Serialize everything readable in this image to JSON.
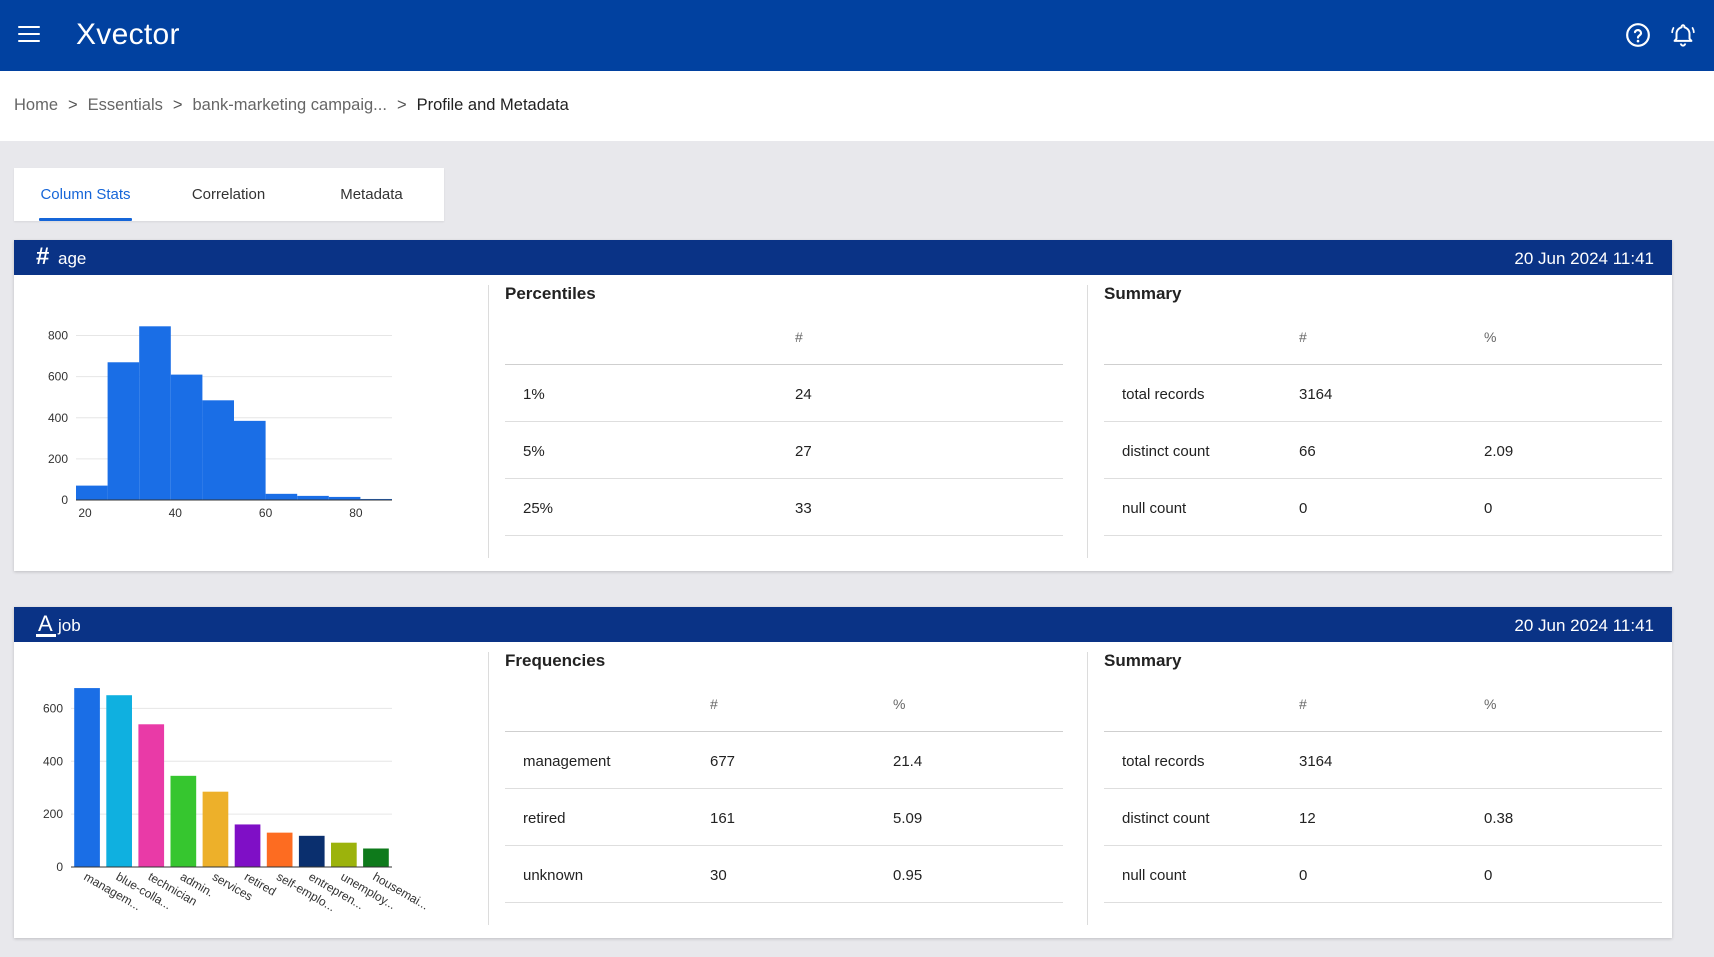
{
  "app": {
    "title": "Xvector"
  },
  "header": {
    "help_icon": "help-circle-icon",
    "bell_icon": "bell-icon"
  },
  "breadcrumb": {
    "items": [
      "Home",
      "Essentials",
      "bank-marketing campaig...",
      "Profile and Metadata"
    ],
    "separator": ">"
  },
  "tabs": [
    {
      "label": "Column Stats",
      "active": true
    },
    {
      "label": "Correlation",
      "active": false
    },
    {
      "label": "Metadata",
      "active": false
    }
  ],
  "colors": {
    "header": "#0141a0",
    "card_header": "#0a3386",
    "accent": "#1565d8",
    "bar": "#1a6ee6"
  },
  "cards": [
    {
      "type_icon": "#",
      "name": "age",
      "date": "20 Jun 2024 11:41",
      "left_panel": {
        "title": "Percentiles",
        "columns": [
          "",
          "#"
        ],
        "rows": [
          [
            "1%",
            "24"
          ],
          [
            "5%",
            "27"
          ],
          [
            "25%",
            "33"
          ]
        ]
      },
      "summary": {
        "title": "Summary",
        "columns": [
          "",
          "#",
          "%"
        ],
        "rows": [
          [
            "total records",
            "3164",
            ""
          ],
          [
            "distinct count",
            "66",
            "2.09"
          ],
          [
            "null count",
            "0",
            "0"
          ]
        ]
      }
    },
    {
      "type_icon": "A",
      "name": "job",
      "date": "20 Jun 2024 11:41",
      "left_panel": {
        "title": "Frequencies",
        "columns": [
          "",
          "#",
          "%"
        ],
        "rows": [
          [
            "management",
            "677",
            "21.4"
          ],
          [
            "retired",
            "161",
            "5.09"
          ],
          [
            "unknown",
            "30",
            "0.95"
          ]
        ]
      },
      "summary": {
        "title": "Summary",
        "columns": [
          "",
          "#",
          "%"
        ],
        "rows": [
          [
            "total records",
            "3164",
            ""
          ],
          [
            "distinct count",
            "12",
            "0.38"
          ],
          [
            "null count",
            "0",
            "0"
          ]
        ]
      }
    }
  ],
  "chart_data": [
    {
      "type": "bar",
      "subtype": "histogram",
      "bins": [
        [
          18,
          25
        ],
        [
          25,
          32
        ],
        [
          32,
          39
        ],
        [
          39,
          46
        ],
        [
          46,
          53
        ],
        [
          53,
          60
        ],
        [
          60,
          67
        ],
        [
          67,
          74
        ],
        [
          74,
          81
        ],
        [
          81,
          88
        ]
      ],
      "values": [
        70,
        670,
        845,
        610,
        485,
        385,
        30,
        20,
        15,
        5
      ],
      "xticks": [
        20,
        40,
        60,
        80
      ],
      "yticks": [
        0,
        200,
        400,
        600,
        800
      ],
      "xlim": [
        18,
        88
      ],
      "ylim": [
        0,
        900
      ],
      "color": "#1a6ee6",
      "grid": true
    },
    {
      "type": "bar",
      "categories": [
        "managem...",
        "blue-colla...",
        "technician",
        "admin.",
        "services",
        "retired",
        "self-emplo...",
        "entrepren...",
        "unemploy...",
        "housemai..."
      ],
      "values": [
        677,
        650,
        540,
        345,
        285,
        161,
        130,
        118,
        92,
        70
      ],
      "colors": [
        "#1a6ee6",
        "#0fb0e0",
        "#e93aa7",
        "#36c62f",
        "#edb02a",
        "#7f0fc6",
        "#fd6c21",
        "#0a2f6e",
        "#9cb30c",
        "#0e7a1b"
      ],
      "yticks": [
        0,
        200,
        400,
        600
      ],
      "ylim": [
        0,
        700
      ],
      "grid": true
    }
  ]
}
